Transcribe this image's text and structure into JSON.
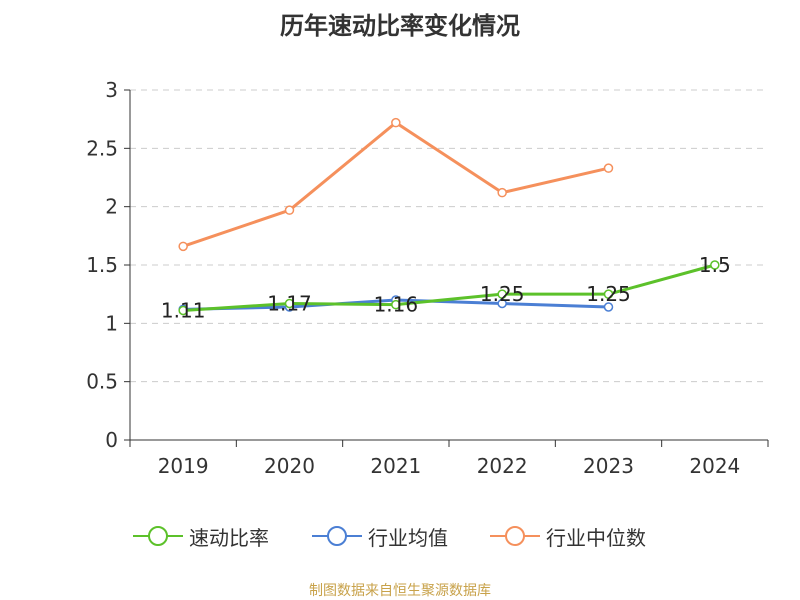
{
  "chart_data": {
    "type": "line",
    "title": "历年速动比率变化情况",
    "categories": [
      "2019",
      "2020",
      "2021",
      "2022",
      "2023",
      "2024"
    ],
    "ylim": [
      0,
      3
    ],
    "yticks": [
      "0",
      "0.5",
      "1",
      "1.5",
      "2",
      "2.5",
      "3"
    ],
    "grid": true,
    "legend_position": "bottom",
    "series": [
      {
        "name": "速动比率",
        "color": "#5cc12a",
        "values": [
          1.11,
          1.17,
          1.16,
          1.25,
          1.25,
          1.5
        ],
        "labels": [
          "1.11",
          "1.17",
          "1.16",
          "1.25",
          "1.25",
          "1.5"
        ]
      },
      {
        "name": "行业均值",
        "color": "#4b7fd4",
        "values": [
          1.12,
          1.14,
          1.2,
          1.17,
          1.14,
          null
        ]
      },
      {
        "name": "行业中位数",
        "color": "#f5905c",
        "values": [
          1.66,
          1.97,
          2.72,
          2.12,
          2.33,
          null
        ]
      }
    ]
  },
  "source": "制图数据来自恒生聚源数据库"
}
